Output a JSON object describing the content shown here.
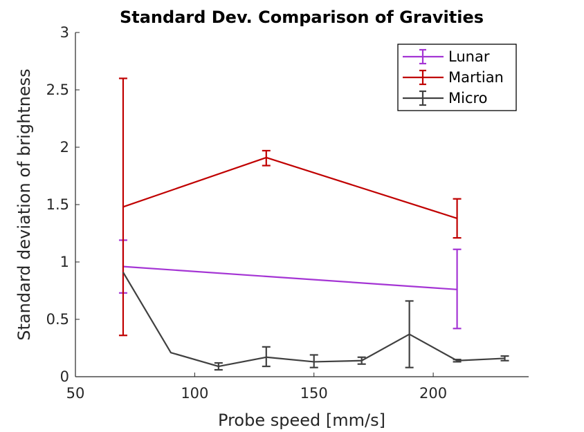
{
  "chart_data": {
    "type": "line",
    "title": "Standard Dev. Comparison of Gravities",
    "xlabel": "Probe speed [mm/s]",
    "ylabel": "Standard deviation of brightness",
    "xlim": [
      50,
      240
    ],
    "ylim": [
      0,
      3
    ],
    "xticks": [
      50,
      100,
      150,
      200
    ],
    "xtick_labels": [
      "50",
      "100",
      "150",
      "200"
    ],
    "yticks": [
      0,
      0.5,
      1,
      1.5,
      2,
      2.5,
      3
    ],
    "ytick_labels": [
      "0",
      "0.5",
      "1",
      "1.5",
      "2",
      "2.5",
      "3"
    ],
    "grid": false,
    "legend_position": "top-right",
    "error_bars": true,
    "series": [
      {
        "name": "Lunar",
        "color": "#a434d4",
        "x": [
          70,
          210
        ],
        "y": [
          0.96,
          0.76
        ],
        "err_low": [
          0.73,
          0.42
        ],
        "err_high": [
          1.19,
          1.11
        ]
      },
      {
        "name": "Martian",
        "color": "#c00000",
        "x": [
          70,
          130,
          210
        ],
        "y": [
          1.48,
          1.91,
          1.38
        ],
        "err_low": [
          0.36,
          1.84,
          1.21
        ],
        "err_high": [
          2.6,
          1.97,
          1.55
        ]
      },
      {
        "name": "Micro",
        "color": "#404040",
        "x": [
          70,
          90,
          110,
          130,
          150,
          170,
          190,
          210,
          230
        ],
        "y": [
          0.91,
          0.21,
          0.09,
          0.17,
          0.13,
          0.14,
          0.37,
          0.14,
          0.16
        ],
        "err_low": [
          0.91,
          0.21,
          0.06,
          0.09,
          0.08,
          0.11,
          0.08,
          0.13,
          0.14
        ],
        "err_high": [
          0.91,
          0.21,
          0.12,
          0.26,
          0.19,
          0.17,
          0.66,
          0.15,
          0.18
        ]
      }
    ]
  }
}
